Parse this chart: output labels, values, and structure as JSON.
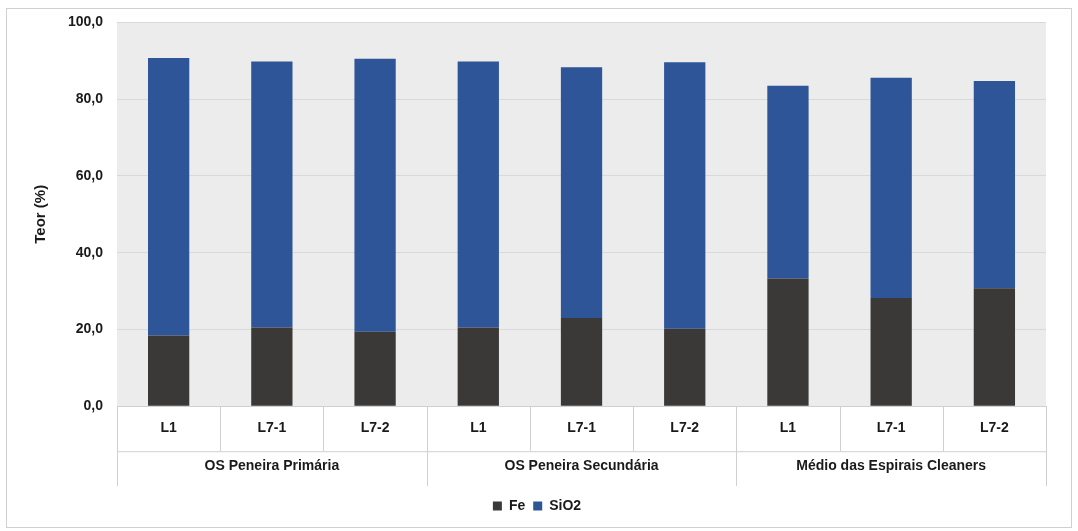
{
  "chart_data": {
    "type": "bar",
    "stacked": true,
    "categories": [
      "L1",
      "L7-1",
      "L7-2",
      "L1",
      "L7-1",
      "L7-2",
      "L1",
      "L7-1",
      "L7-2"
    ],
    "series": [
      {
        "name": "Fe",
        "color": "#3a3937",
        "values": [
          18.4,
          20.5,
          19.4,
          20.5,
          23.0,
          20.2,
          33.3,
          28.2,
          30.7
        ]
      },
      {
        "name": "SiO2",
        "color": "#2e5597",
        "values": [
          72.3,
          69.3,
          71.1,
          69.3,
          65.3,
          69.4,
          50.2,
          57.4,
          54.0
        ]
      }
    ],
    "ylabel": "Teor (%)",
    "ylim": [
      0,
      100
    ],
    "yticks": [
      {
        "value": 0,
        "label": "0,0"
      },
      {
        "value": 20,
        "label": "20,0"
      },
      {
        "value": 40,
        "label": "40,0"
      },
      {
        "value": 60,
        "label": "60,0"
      },
      {
        "value": 80,
        "label": "80,0"
      },
      {
        "value": 100,
        "label": "100,0"
      }
    ],
    "annotations": [
      "OS Peneira Primária",
      "OS Peneira Secundária",
      "Médio das Espirais Cleaners"
    ],
    "grid": "y",
    "legend": "bottom"
  }
}
